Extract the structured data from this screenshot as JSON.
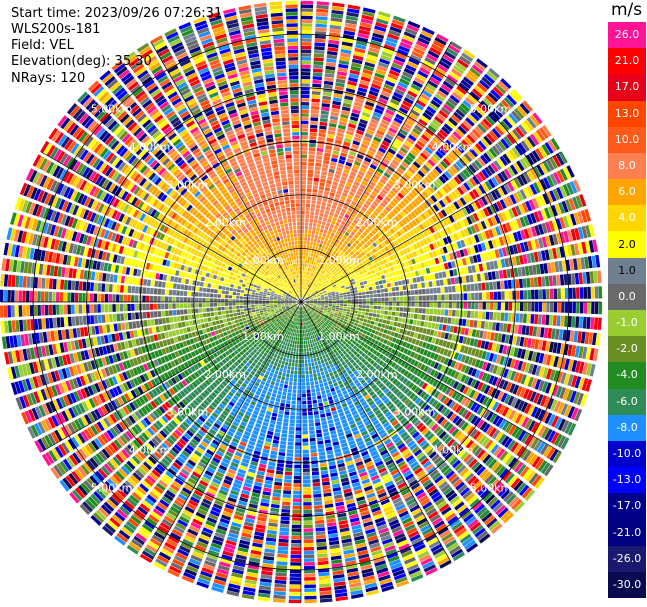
{
  "info": {
    "start_time": "Start time: 2023/09/26 07:26:31",
    "instrument": "WLS200s-181",
    "field": "Field: VEL",
    "elevation": "Elevation(deg): 35.30",
    "nrays": "NRays: 120"
  },
  "chart_data": {
    "type": "heatmap",
    "projection": "polar PPI",
    "field": "VEL",
    "units": "m/s",
    "nrays": 120,
    "elevation_deg": 35.3,
    "range_rings_km": [
      1.0,
      2.0,
      3.0,
      4.0,
      5.0
    ],
    "range_labels": [
      "1.00km",
      "2.00km",
      "3.00km",
      "4.00km",
      "5.00km"
    ],
    "colorbar": {
      "title": "m/s",
      "ticks": [
        "26.0",
        "21.0",
        "17.0",
        "13.0",
        "10.0",
        "8.0",
        "6.0",
        "4.0",
        "2.0",
        "1.0",
        "0.0",
        "-1.0",
        "-2.0",
        "-4.0",
        "-6.0",
        "-8.0",
        "-10.0",
        "-13.0",
        "-17.0",
        "-21.0",
        "-26.0",
        "-30.0"
      ],
      "colors": [
        "#ff1493",
        "#ff0000",
        "#e8001a",
        "#ff4500",
        "#ff5a1a",
        "#ff7f50",
        "#ffa500",
        "#ffd700",
        "#ffff00",
        "#708090",
        "#696969",
        "#9acd32",
        "#6b8e23",
        "#228b22",
        "#2e8b57",
        "#1e90ff",
        "#0000cd",
        "#0000ff",
        "#00008b",
        "#000080",
        "#191970",
        "#0a0a50"
      ]
    }
  }
}
